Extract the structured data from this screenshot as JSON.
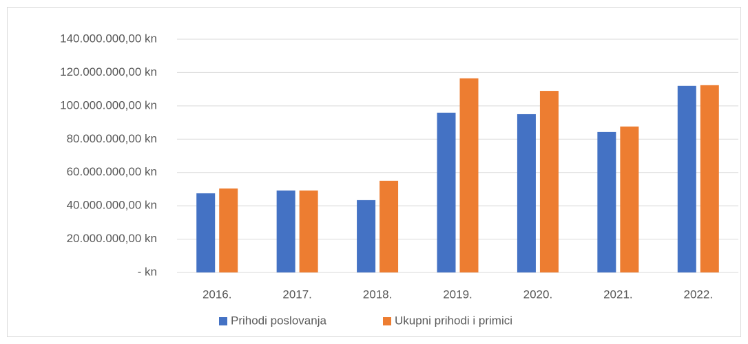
{
  "chart_data": {
    "type": "bar",
    "categories": [
      "2016.",
      "2017.",
      "2018.",
      "2019.",
      "2020.",
      "2021.",
      "2022."
    ],
    "series": [
      {
        "name": "Prihodi poslovanja",
        "color": "#4472c4",
        "values": [
          47500000,
          49200000,
          43400000,
          95900000,
          95000000,
          84300000,
          112000000
        ]
      },
      {
        "name": "Ukupni prihodi i primici",
        "color": "#ed7d31",
        "values": [
          50400000,
          49200000,
          55000000,
          116500000,
          109000000,
          87600000,
          112400000
        ]
      }
    ],
    "ylim": [
      0,
      140000000
    ],
    "yticks": [
      {
        "value": 0,
        "label": "-   kn"
      },
      {
        "value": 20000000,
        "label": "20.000.000,00 kn"
      },
      {
        "value": 40000000,
        "label": "40.000.000,00 kn"
      },
      {
        "value": 60000000,
        "label": "60.000.000,00 kn"
      },
      {
        "value": 80000000,
        "label": "80.000.000,00 kn"
      },
      {
        "value": 100000000,
        "label": "100.000.000,00 kn"
      },
      {
        "value": 120000000,
        "label": "120.000.000,00 kn"
      },
      {
        "value": 140000000,
        "label": "140.000.000,00 kn"
      }
    ],
    "grid": true,
    "legend": "bottom"
  }
}
